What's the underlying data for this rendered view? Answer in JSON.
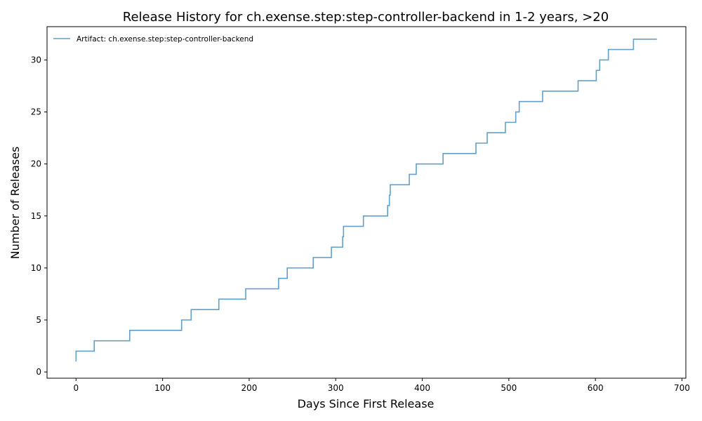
{
  "chart_data": {
    "type": "line",
    "step": true,
    "title": "Release History for ch.exense.step:step-controller-backend in 1-2 years, >20",
    "xlabel": "Days Since First Release",
    "ylabel": "Number of Releases",
    "xlim": [
      -33.5,
      704.5
    ],
    "ylim": [
      -0.6,
      33.2
    ],
    "xticks": [
      0,
      100,
      200,
      300,
      400,
      500,
      600,
      700
    ],
    "yticks": [
      0,
      5,
      10,
      15,
      20,
      25,
      30
    ],
    "grid": false,
    "legend_position": "top-left",
    "series": [
      {
        "name": "Artifact: ch.exense.step:step-controller-backend",
        "color": "#1f77b4",
        "x": [
          0,
          0,
          21,
          62,
          122,
          133,
          165,
          196,
          234,
          244,
          274,
          295,
          308,
          309,
          332,
          360,
          362,
          363,
          385,
          393,
          424,
          462,
          475,
          496,
          508,
          512,
          513,
          539,
          580,
          601,
          604,
          605,
          615,
          644,
          671
        ],
        "y": [
          1,
          2,
          3,
          4,
          5,
          6,
          7,
          8,
          9,
          10,
          11,
          12,
          13,
          14,
          15,
          16,
          17,
          18,
          19,
          20,
          21,
          22,
          23,
          24,
          25,
          26,
          26,
          27,
          28,
          29,
          29,
          30,
          31,
          32,
          32
        ]
      }
    ]
  }
}
